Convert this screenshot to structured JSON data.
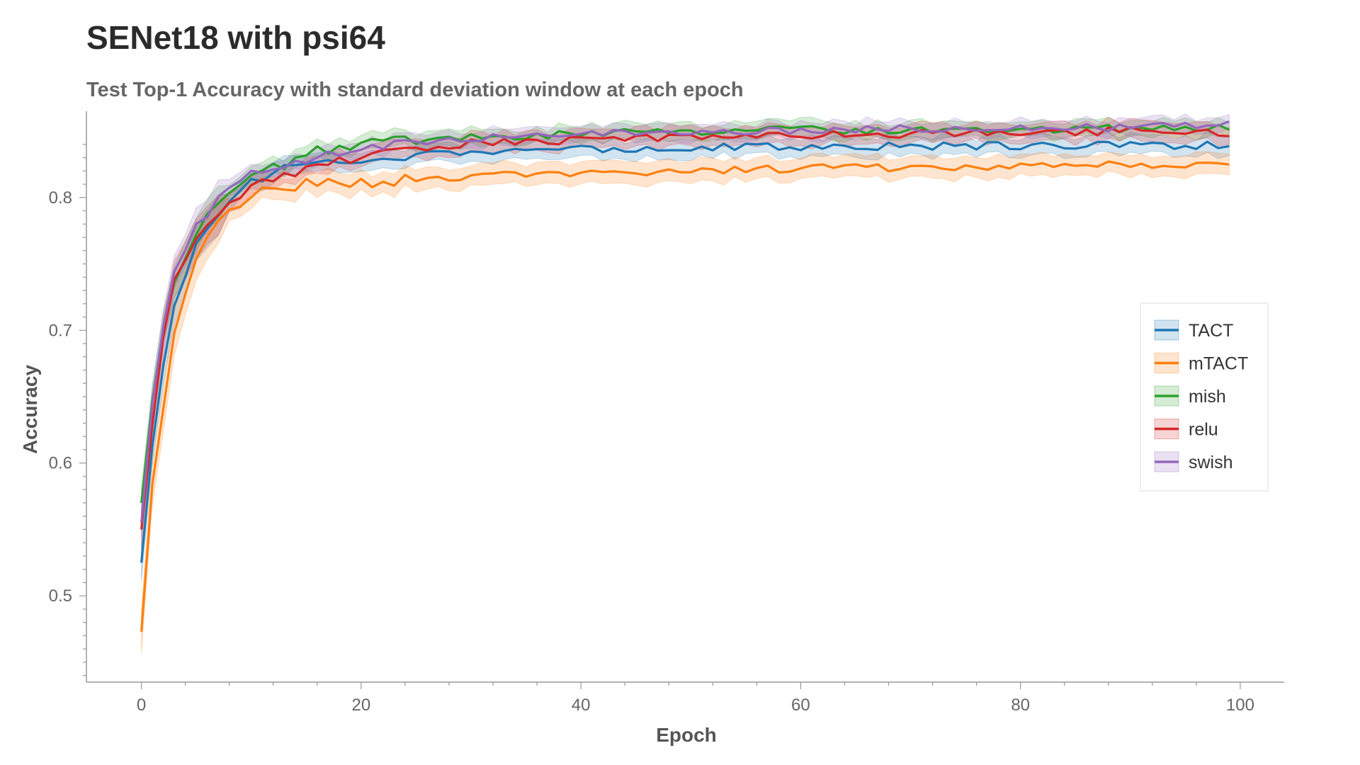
{
  "title": "SENet18 with psi64",
  "subtitle": "Test Top-1 Accuracy with standard deviation window at each epoch",
  "chart_data": {
    "type": "line",
    "title": "SENet18 with psi64",
    "subtitle": "Test Top-1 Accuracy with standard deviation window at each epoch",
    "xlabel": "Epoch",
    "ylabel": "Accuracy",
    "xlim": [
      -5,
      104
    ],
    "ylim": [
      0.435,
      0.865
    ],
    "xticks": [
      0,
      20,
      40,
      60,
      80,
      100
    ],
    "yticks": [
      0.5,
      0.6,
      0.7,
      0.8
    ],
    "ytick_labels": [
      "0.5",
      "0.6",
      "0.7",
      "0.8"
    ],
    "grid": false,
    "legend_position": "center-right",
    "x_range": [
      0,
      99
    ],
    "series": [
      {
        "name": "TACT",
        "color": "#1f77b4",
        "start": 0.525,
        "plateau": 0.84,
        "tau": 2.8,
        "std": 0.006,
        "anchors": [
          [
            0,
            0.525
          ],
          [
            1,
            0.61
          ],
          [
            2,
            0.675
          ],
          [
            3,
            0.72
          ],
          [
            5,
            0.765
          ],
          [
            7,
            0.79
          ],
          [
            10,
            0.812
          ],
          [
            13,
            0.822
          ],
          [
            20,
            0.83
          ],
          [
            30,
            0.835
          ],
          [
            40,
            0.836
          ],
          [
            50,
            0.838
          ],
          [
            60,
            0.838
          ],
          [
            70,
            0.839
          ],
          [
            80,
            0.839
          ],
          [
            90,
            0.84
          ],
          [
            99,
            0.839
          ]
        ]
      },
      {
        "name": "mTACT",
        "color": "#ff7f0e",
        "start": 0.473,
        "plateau": 0.826,
        "tau": 2.9,
        "std": 0.007,
        "anchors": [
          [
            0,
            0.473
          ],
          [
            1,
            0.58
          ],
          [
            2,
            0.645
          ],
          [
            3,
            0.695
          ],
          [
            5,
            0.755
          ],
          [
            7,
            0.785
          ],
          [
            10,
            0.802
          ],
          [
            15,
            0.81
          ],
          [
            20,
            0.811
          ],
          [
            30,
            0.816
          ],
          [
            40,
            0.818
          ],
          [
            50,
            0.82
          ],
          [
            60,
            0.822
          ],
          [
            70,
            0.823
          ],
          [
            80,
            0.824
          ],
          [
            90,
            0.825
          ],
          [
            99,
            0.826
          ]
        ]
      },
      {
        "name": "mish",
        "color": "#2ca02c",
        "start": 0.57,
        "plateau": 0.853,
        "tau": 2.6,
        "std": 0.005,
        "anchors": [
          [
            0,
            0.57
          ],
          [
            1,
            0.65
          ],
          [
            2,
            0.7
          ],
          [
            3,
            0.737
          ],
          [
            5,
            0.775
          ],
          [
            7,
            0.797
          ],
          [
            10,
            0.814
          ],
          [
            15,
            0.833
          ],
          [
            20,
            0.84
          ],
          [
            30,
            0.846
          ],
          [
            40,
            0.848
          ],
          [
            50,
            0.85
          ],
          [
            60,
            0.851
          ],
          [
            70,
            0.851
          ],
          [
            80,
            0.852
          ],
          [
            90,
            0.852
          ],
          [
            99,
            0.853
          ]
        ]
      },
      {
        "name": "relu",
        "color": "#d62728",
        "start": 0.55,
        "plateau": 0.85,
        "tau": 2.7,
        "std": 0.006,
        "anchors": [
          [
            0,
            0.55
          ],
          [
            1,
            0.63
          ],
          [
            2,
            0.695
          ],
          [
            3,
            0.735
          ],
          [
            5,
            0.765
          ],
          [
            7,
            0.787
          ],
          [
            10,
            0.81
          ],
          [
            15,
            0.822
          ],
          [
            20,
            0.83
          ],
          [
            30,
            0.841
          ],
          [
            40,
            0.843
          ],
          [
            50,
            0.845
          ],
          [
            60,
            0.847
          ],
          [
            70,
            0.848
          ],
          [
            80,
            0.849
          ],
          [
            90,
            0.85
          ],
          [
            99,
            0.849
          ]
        ]
      },
      {
        "name": "swish",
        "color": "#9467bd",
        "start": 0.555,
        "plateau": 0.853,
        "tau": 2.6,
        "std": 0.005,
        "anchors": [
          [
            0,
            0.555
          ],
          [
            1,
            0.645
          ],
          [
            2,
            0.705
          ],
          [
            3,
            0.745
          ],
          [
            5,
            0.778
          ],
          [
            7,
            0.8
          ],
          [
            10,
            0.816
          ],
          [
            15,
            0.83
          ],
          [
            20,
            0.838
          ],
          [
            30,
            0.845
          ],
          [
            40,
            0.848
          ],
          [
            50,
            0.85
          ],
          [
            60,
            0.851
          ],
          [
            70,
            0.852
          ],
          [
            80,
            0.852
          ],
          [
            90,
            0.853
          ],
          [
            99,
            0.855
          ]
        ]
      }
    ]
  }
}
